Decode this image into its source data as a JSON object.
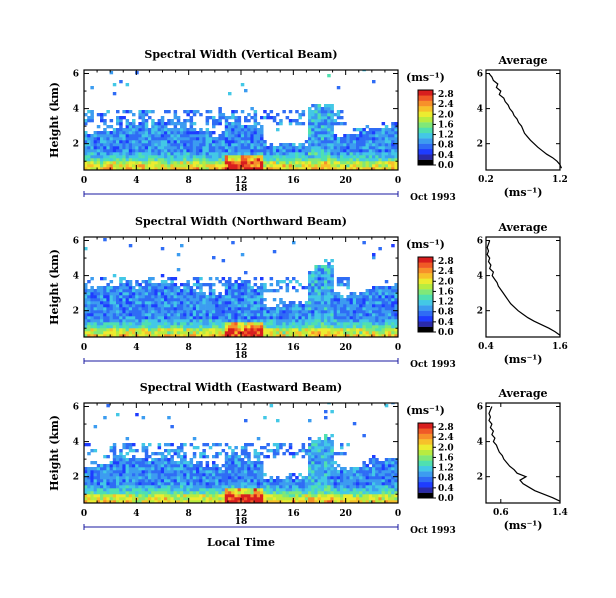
{
  "colorbar_colors": [
    "#000000",
    "#2a2aa8",
    "#1e3cff",
    "#2f6cf5",
    "#3c9cf0",
    "#43c8e6",
    "#4fe0b0",
    "#80e878",
    "#b8ec40",
    "#ecec30",
    "#f7c12a",
    "#f7902a",
    "#f05a26",
    "#d81e1e"
  ],
  "chart_data": [
    {
      "type": "heatmap",
      "title": "Spectral Width (Vertical Beam)",
      "xlabel": "",
      "ylabel": "Height (km)",
      "x_ticks": [
        "0",
        "4",
        "8",
        "12",
        "16",
        "20",
        "0"
      ],
      "y_ticks": [
        "2",
        "4",
        "6"
      ],
      "xlim": [
        0,
        24
      ],
      "ylim": [
        0.5,
        6.2
      ],
      "date_marker": "18",
      "date_label": "Oct 1993",
      "colorbar_unit": "(ms⁻¹)",
      "colorbar_ticks": [
        "0.0",
        "0.4",
        "0.8",
        "1.2",
        "1.6",
        "2.0",
        "2.4",
        "2.8"
      ],
      "profile": {
        "title": "Average",
        "xlabel": "(ms⁻¹)",
        "x_ticks": [
          "0.2",
          "1.2"
        ],
        "xlim": [
          0.2,
          1.2
        ],
        "y_ticks": [
          "2",
          "4",
          "6"
        ],
        "height": [
          0.6,
          0.8,
          1.0,
          1.2,
          1.4,
          1.6,
          1.8,
          2.0,
          2.2,
          2.4,
          2.6,
          2.8,
          3.0,
          3.2,
          3.4,
          3.6,
          3.8,
          4.0,
          4.2,
          4.4,
          4.6,
          4.8,
          5.0,
          5.2,
          5.4,
          5.6,
          5.8,
          6.0
        ],
        "width": [
          1.22,
          1.2,
          1.16,
          1.1,
          1.02,
          0.96,
          0.9,
          0.85,
          0.8,
          0.76,
          0.72,
          0.7,
          0.68,
          0.64,
          0.62,
          0.58,
          0.56,
          0.52,
          0.5,
          0.46,
          0.44,
          0.38,
          0.4,
          0.34,
          0.36,
          0.3,
          0.28,
          0.24
        ]
      }
    },
    {
      "type": "heatmap",
      "title": "Spectral Width (Northward Beam)",
      "xlabel": "",
      "ylabel": "Height (km)",
      "x_ticks": [
        "0",
        "4",
        "8",
        "12",
        "16",
        "20",
        "0"
      ],
      "y_ticks": [
        "2",
        "4",
        "6"
      ],
      "xlim": [
        0,
        24
      ],
      "ylim": [
        0.5,
        6.2
      ],
      "date_marker": "18",
      "date_label": "Oct 1993",
      "colorbar_unit": "(ms⁻¹)",
      "colorbar_ticks": [
        "0.0",
        "0.4",
        "0.8",
        "1.2",
        "1.6",
        "2.0",
        "2.4",
        "2.8"
      ],
      "profile": {
        "title": "Average",
        "xlabel": "(ms⁻¹)",
        "x_ticks": [
          "0.4",
          "1.6"
        ],
        "xlim": [
          0.4,
          1.6
        ],
        "y_ticks": [
          "2",
          "4",
          "6"
        ],
        "height": [
          0.6,
          0.8,
          1.0,
          1.2,
          1.4,
          1.6,
          1.8,
          2.0,
          2.2,
          2.4,
          2.6,
          2.8,
          3.0,
          3.2,
          3.4,
          3.6,
          3.8,
          4.0,
          4.2,
          4.4,
          4.6,
          4.8,
          5.0,
          5.2,
          5.4,
          5.6,
          5.8,
          6.0
        ],
        "width": [
          1.6,
          1.52,
          1.42,
          1.3,
          1.18,
          1.08,
          1.0,
          0.92,
          0.86,
          0.8,
          0.76,
          0.72,
          0.68,
          0.64,
          0.6,
          0.58,
          0.54,
          0.5,
          0.52,
          0.46,
          0.48,
          0.44,
          0.46,
          0.42,
          0.44,
          0.42,
          0.44,
          0.46
        ]
      }
    },
    {
      "type": "heatmap",
      "title": "Spectral Width (Eastward Beam)",
      "xlabel": "Local Time",
      "ylabel": "Height (km)",
      "x_ticks": [
        "0",
        "4",
        "8",
        "12",
        "16",
        "20",
        "0"
      ],
      "y_ticks": [
        "2",
        "4",
        "6"
      ],
      "xlim": [
        0,
        24
      ],
      "ylim": [
        0.5,
        6.2
      ],
      "date_marker": "18",
      "date_label": "Oct 1993",
      "colorbar_unit": "(ms⁻¹)",
      "colorbar_ticks": [
        "0.0",
        "0.4",
        "0.8",
        "1.2",
        "1.6",
        "2.0",
        "2.4",
        "2.8"
      ],
      "profile": {
        "title": "Average",
        "xlabel": "(ms⁻¹)",
        "x_ticks": [
          "0.6",
          "1.4"
        ],
        "xlim": [
          0.4,
          1.4
        ],
        "y_ticks": [
          "2",
          "4",
          "6"
        ],
        "height": [
          0.6,
          0.8,
          1.0,
          1.2,
          1.4,
          1.6,
          1.8,
          2.0,
          2.2,
          2.4,
          2.6,
          2.8,
          3.0,
          3.2,
          3.4,
          3.6,
          3.8,
          4.0,
          4.2,
          4.4,
          4.6,
          4.8,
          5.0,
          5.2,
          5.4,
          5.6,
          5.8,
          6.0
        ],
        "width": [
          1.4,
          1.3,
          1.18,
          1.06,
          0.98,
          0.9,
          0.86,
          0.94,
          0.82,
          0.78,
          0.72,
          0.68,
          0.64,
          0.62,
          0.58,
          0.56,
          0.54,
          0.5,
          0.52,
          0.48,
          0.5,
          0.46,
          0.48,
          0.44,
          0.46,
          0.44,
          0.46,
          0.48
        ]
      }
    }
  ]
}
